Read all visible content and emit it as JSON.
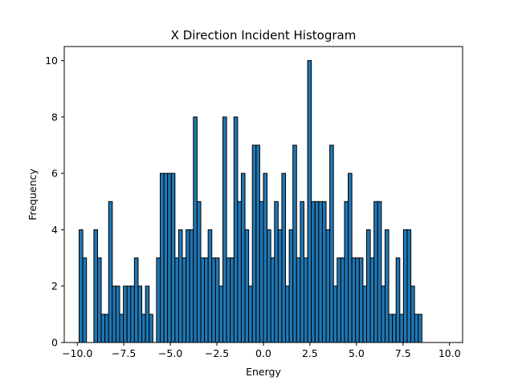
{
  "chart_data": {
    "type": "bar",
    "title": "X Direction Incident Histogram",
    "xlabel": "Energy",
    "ylabel": "Frequency",
    "xlim": [
      -10.7,
      10.7
    ],
    "ylim": [
      0,
      10.5
    ],
    "x_ticks": [
      -10.0,
      -7.5,
      -5.0,
      -2.5,
      0.0,
      2.5,
      5.0,
      7.5,
      10.0
    ],
    "x_tick_labels": [
      "−10.0",
      "−7.5",
      "−5.0",
      "−2.5",
      "0.0",
      "2.5",
      "5.0",
      "7.5",
      "10.0"
    ],
    "y_ticks": [
      0,
      2,
      4,
      6,
      8,
      10
    ],
    "y_tick_labels": [
      "0",
      "2",
      "4",
      "6",
      "8",
      "10"
    ],
    "bin_start": -9.9,
    "bin_width": 0.198,
    "counts": [
      4,
      3,
      0,
      0,
      4,
      3,
      1,
      1,
      5,
      2,
      2,
      1,
      2,
      2,
      2,
      3,
      2,
      1,
      2,
      1,
      0,
      3,
      6,
      6,
      6,
      6,
      3,
      4,
      3,
      4,
      4,
      8,
      5,
      3,
      3,
      4,
      3,
      3,
      2,
      8,
      3,
      3,
      8,
      5,
      6,
      4,
      2,
      7,
      7,
      5,
      6,
      4,
      3,
      5,
      4,
      6,
      2,
      4,
      7,
      3,
      5,
      3,
      10,
      5,
      5,
      5,
      5,
      4,
      7,
      2,
      3,
      3,
      5,
      6,
      3,
      3,
      3,
      2,
      4,
      3,
      5,
      5,
      2,
      4,
      1,
      1,
      3,
      1,
      4,
      4,
      2,
      1,
      1
    ],
    "grid": false,
    "legend": "none",
    "colors": {
      "bar_fill": "#1f77b4",
      "bar_edge": "#000000",
      "axes": "#000000",
      "background": "#ffffff"
    }
  }
}
